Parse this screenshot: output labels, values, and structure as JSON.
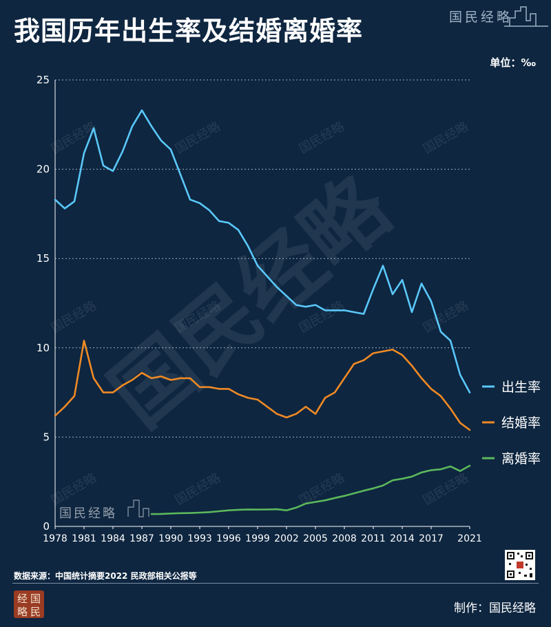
{
  "title": "我国历年出生率及结婚离婚率",
  "brand": "国民经略",
  "unit": "单位：‰",
  "source": "数据来源：中国统计摘要2022 民政部相关公报等",
  "credit": "制作：国民经略",
  "seal_chars": [
    "经",
    "国",
    "略",
    "民"
  ],
  "colors": {
    "background": "#0e2640",
    "birth": "#5ac8fa",
    "marriage": "#f08a24",
    "divorce": "#5cb85c",
    "grid": "#c9d3de",
    "text": "#ffffff"
  },
  "chart_data": {
    "type": "line",
    "title": "我国历年出生率及结婚离婚率",
    "ylabel": "单位：‰",
    "xlim": [
      1978,
      2021
    ],
    "ylim": [
      0,
      25
    ],
    "yticks": [
      0,
      5,
      10,
      15,
      20,
      25
    ],
    "xticks": [
      1978,
      1981,
      1984,
      1987,
      1990,
      1993,
      1996,
      1999,
      2002,
      2005,
      2008,
      2011,
      2014,
      2017,
      2021
    ],
    "grid": "horizontal dotted",
    "legend_position": "right",
    "series": [
      {
        "name": "出生率",
        "color": "#5ac8fa",
        "x": [
          1978,
          1979,
          1980,
          1981,
          1982,
          1983,
          1984,
          1985,
          1986,
          1987,
          1988,
          1989,
          1990,
          1991,
          1992,
          1993,
          1994,
          1995,
          1996,
          1997,
          1998,
          1999,
          2000,
          2001,
          2002,
          2003,
          2004,
          2005,
          2006,
          2007,
          2008,
          2009,
          2010,
          2011,
          2012,
          2013,
          2014,
          2015,
          2016,
          2017,
          2018,
          2019,
          2020,
          2021
        ],
        "values": [
          18.3,
          17.8,
          18.2,
          20.9,
          22.3,
          20.2,
          19.9,
          21.0,
          22.4,
          23.3,
          22.4,
          21.6,
          21.1,
          19.7,
          18.3,
          18.1,
          17.7,
          17.1,
          17.0,
          16.6,
          15.7,
          14.6,
          14.0,
          13.4,
          12.9,
          12.4,
          12.3,
          12.4,
          12.1,
          12.1,
          12.1,
          12.0,
          11.9,
          13.3,
          14.6,
          13.0,
          13.8,
          12.0,
          13.6,
          12.6,
          10.9,
          10.4,
          8.5,
          7.5
        ]
      },
      {
        "name": "结婚率",
        "color": "#f08a24",
        "x": [
          1978,
          1979,
          1980,
          1981,
          1982,
          1983,
          1984,
          1985,
          1986,
          1987,
          1988,
          1989,
          1990,
          1991,
          1992,
          1993,
          1994,
          1995,
          1996,
          1997,
          1998,
          1999,
          2000,
          2001,
          2002,
          2003,
          2004,
          2005,
          2006,
          2007,
          2008,
          2009,
          2010,
          2011,
          2012,
          2013,
          2014,
          2015,
          2016,
          2017,
          2018,
          2019,
          2020,
          2021
        ],
        "values": [
          6.2,
          6.7,
          7.3,
          10.4,
          8.3,
          7.5,
          7.5,
          7.9,
          8.2,
          8.6,
          8.3,
          8.4,
          8.2,
          8.3,
          8.3,
          7.8,
          7.8,
          7.7,
          7.7,
          7.4,
          7.2,
          7.1,
          6.7,
          6.3,
          6.1,
          6.3,
          6.7,
          6.3,
          7.2,
          7.5,
          8.3,
          9.1,
          9.3,
          9.7,
          9.8,
          9.9,
          9.6,
          9.0,
          8.3,
          7.7,
          7.3,
          6.6,
          5.8,
          5.4
        ]
      },
      {
        "name": "离婚率",
        "color": "#5cb85c",
        "x": [
          1988,
          1989,
          1990,
          1991,
          1992,
          1993,
          1994,
          1995,
          1996,
          1997,
          1998,
          1999,
          2000,
          2001,
          2002,
          2003,
          2004,
          2005,
          2006,
          2007,
          2008,
          2009,
          2010,
          2011,
          2012,
          2013,
          2014,
          2015,
          2016,
          2017,
          2018,
          2019,
          2020,
          2021
        ],
        "values": [
          0.69,
          0.7,
          0.72,
          0.74,
          0.75,
          0.77,
          0.8,
          0.85,
          0.9,
          0.93,
          0.95,
          0.94,
          0.95,
          0.96,
          0.9,
          1.05,
          1.28,
          1.37,
          1.46,
          1.59,
          1.71,
          1.85,
          2.0,
          2.13,
          2.29,
          2.58,
          2.67,
          2.79,
          3.02,
          3.15,
          3.2,
          3.36,
          3.1,
          3.4
        ]
      }
    ]
  }
}
